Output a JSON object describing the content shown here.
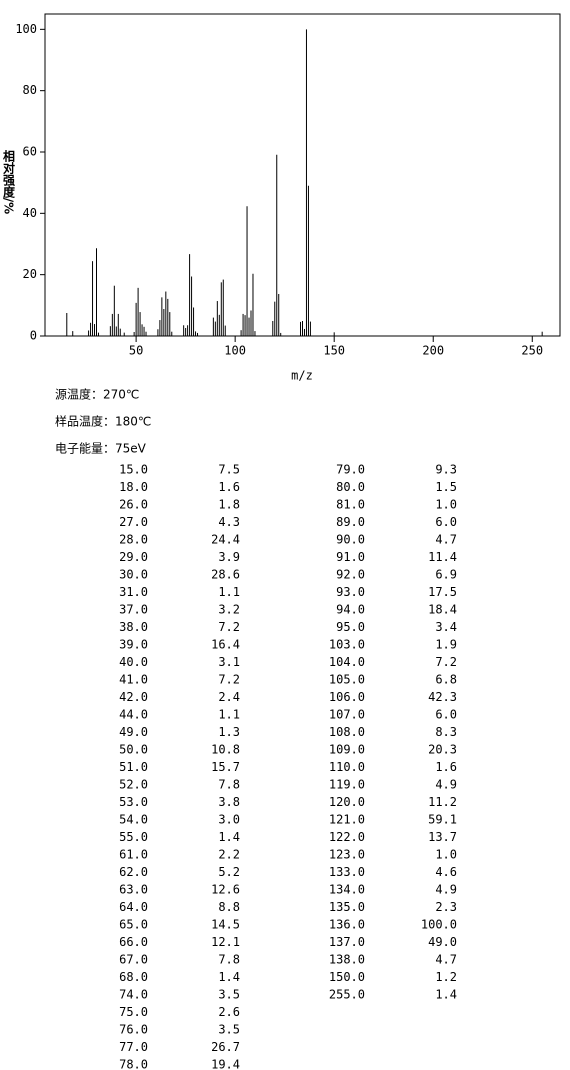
{
  "chart_data": {
    "type": "stick",
    "y_label": "相对强度/%",
    "x_label": "m/z",
    "x": [
      15,
      18,
      26,
      27,
      28,
      29,
      30,
      31,
      37,
      38,
      39,
      40,
      41,
      42,
      44,
      49,
      50,
      51,
      52,
      53,
      54,
      55,
      61,
      62,
      63,
      64,
      65,
      66,
      67,
      68,
      74,
      75,
      76,
      77,
      78,
      79,
      80,
      81,
      89,
      90,
      91,
      92,
      93,
      94,
      95,
      103,
      104,
      105,
      106,
      107,
      108,
      109,
      110,
      119,
      120,
      121,
      122,
      123,
      133,
      134,
      135,
      136,
      137,
      138,
      150,
      255
    ],
    "values": [
      7.5,
      1.6,
      1.8,
      4.3,
      24.4,
      3.9,
      28.6,
      1.1,
      3.2,
      7.2,
      16.4,
      3.1,
      7.2,
      2.4,
      1.1,
      1.3,
      10.8,
      15.7,
      7.8,
      3.8,
      3.0,
      1.4,
      2.2,
      5.2,
      12.6,
      8.8,
      14.5,
      12.1,
      7.8,
      1.4,
      3.5,
      2.6,
      3.5,
      26.7,
      19.4,
      9.3,
      1.5,
      1.0,
      6.0,
      4.7,
      11.4,
      6.9,
      17.5,
      18.4,
      3.4,
      1.9,
      7.2,
      6.8,
      42.3,
      6.0,
      8.3,
      20.3,
      1.6,
      4.9,
      11.2,
      59.1,
      13.7,
      1.0,
      4.6,
      4.9,
      2.3,
      100.0,
      49.0,
      4.7,
      1.2,
      1.4
    ],
    "color": "#000000",
    "xlim": [
      4,
      264
    ],
    "xticks": [
      50,
      100,
      150,
      200,
      250
    ],
    "ylim": [
      0,
      105
    ],
    "yticks": [
      0,
      20,
      40,
      60,
      80,
      100
    ]
  },
  "info": [
    "源温度：270℃",
    "样品温度：180℃",
    "电子能量：75eV"
  ],
  "table": {
    "left": [
      [
        "15.0",
        "7.5"
      ],
      [
        "18.0",
        "1.6"
      ],
      [
        "26.0",
        "1.8"
      ],
      [
        "27.0",
        "4.3"
      ],
      [
        "28.0",
        "24.4"
      ],
      [
        "29.0",
        "3.9"
      ],
      [
        "30.0",
        "28.6"
      ],
      [
        "31.0",
        "1.1"
      ],
      [
        "37.0",
        "3.2"
      ],
      [
        "38.0",
        "7.2"
      ],
      [
        "39.0",
        "16.4"
      ],
      [
        "40.0",
        "3.1"
      ],
      [
        "41.0",
        "7.2"
      ],
      [
        "42.0",
        "2.4"
      ],
      [
        "44.0",
        "1.1"
      ],
      [
        "49.0",
        "1.3"
      ],
      [
        "50.0",
        "10.8"
      ],
      [
        "51.0",
        "15.7"
      ],
      [
        "52.0",
        "7.8"
      ],
      [
        "53.0",
        "3.8"
      ],
      [
        "54.0",
        "3.0"
      ],
      [
        "55.0",
        "1.4"
      ],
      [
        "61.0",
        "2.2"
      ],
      [
        "62.0",
        "5.2"
      ],
      [
        "63.0",
        "12.6"
      ],
      [
        "64.0",
        "8.8"
      ],
      [
        "65.0",
        "14.5"
      ],
      [
        "66.0",
        "12.1"
      ],
      [
        "67.0",
        "7.8"
      ],
      [
        "68.0",
        "1.4"
      ],
      [
        "74.0",
        "3.5"
      ],
      [
        "75.0",
        "2.6"
      ],
      [
        "76.0",
        "3.5"
      ],
      [
        "77.0",
        "26.7"
      ],
      [
        "78.0",
        "19.4"
      ]
    ],
    "right": [
      [
        "79.0",
        "9.3"
      ],
      [
        "80.0",
        "1.5"
      ],
      [
        "81.0",
        "1.0"
      ],
      [
        "89.0",
        "6.0"
      ],
      [
        "90.0",
        "4.7"
      ],
      [
        "91.0",
        "11.4"
      ],
      [
        "92.0",
        "6.9"
      ],
      [
        "93.0",
        "17.5"
      ],
      [
        "94.0",
        "18.4"
      ],
      [
        "95.0",
        "3.4"
      ],
      [
        "103.0",
        "1.9"
      ],
      [
        "104.0",
        "7.2"
      ],
      [
        "105.0",
        "6.8"
      ],
      [
        "106.0",
        "42.3"
      ],
      [
        "107.0",
        "6.0"
      ],
      [
        "108.0",
        "8.3"
      ],
      [
        "109.0",
        "20.3"
      ],
      [
        "110.0",
        "1.6"
      ],
      [
        "119.0",
        "4.9"
      ],
      [
        "120.0",
        "11.2"
      ],
      [
        "121.0",
        "59.1"
      ],
      [
        "122.0",
        "13.7"
      ],
      [
        "123.0",
        "1.0"
      ],
      [
        "133.0",
        "4.6"
      ],
      [
        "134.0",
        "4.9"
      ],
      [
        "135.0",
        "2.3"
      ],
      [
        "136.0",
        "100.0"
      ],
      [
        "137.0",
        "49.0"
      ],
      [
        "138.0",
        "4.7"
      ],
      [
        "150.0",
        "1.2"
      ],
      [
        "255.0",
        "1.4"
      ]
    ]
  }
}
